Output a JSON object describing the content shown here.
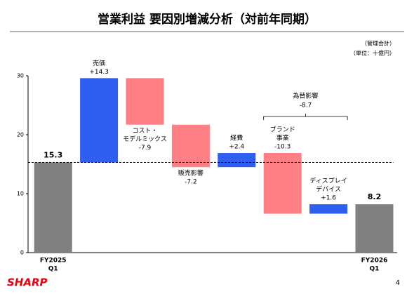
{
  "header": {
    "title": "営業利益 要因別増減分析（対前年同期）",
    "notes": [
      "（管理会計）",
      "（単位：十億円）"
    ]
  },
  "footer": {
    "logo": "SHARP",
    "page": "4"
  },
  "chart_data": {
    "type": "waterfall",
    "categories": [
      [
        "FY2025",
        "Q1"
      ],
      [
        "売価"
      ],
      [
        "コスト・",
        "モデルミックス"
      ],
      [
        "販売影響"
      ],
      [
        "経費"
      ],
      [
        "ブランド",
        "事業"
      ],
      [
        "ディスプレイ",
        "デバイス"
      ],
      [
        "FY2026",
        "Q1"
      ]
    ],
    "values": [
      15.3,
      14.3,
      -7.9,
      -7.2,
      2.4,
      -10.3,
      1.6,
      8.2
    ],
    "value_labels": [
      "15.3",
      "+14.3",
      "-7.9",
      "-7.2",
      "+2.4",
      "-10.3",
      "+1.6",
      "8.2"
    ],
    "measure": [
      "total",
      "relative",
      "relative",
      "relative",
      "relative",
      "relative",
      "relative",
      "total"
    ],
    "label_positions": [
      "above",
      "above",
      "below",
      "below",
      "above",
      "above",
      "above",
      "above"
    ],
    "colors": {
      "total": "#808080",
      "increase": "#2f5ff0",
      "decrease": "#ff7f84"
    },
    "annotation": {
      "label": "為替影響",
      "value": -8.7,
      "value_label": "-8.7"
    },
    "ylim": [
      0,
      30
    ],
    "yticks": [
      0,
      10,
      20,
      30
    ]
  }
}
